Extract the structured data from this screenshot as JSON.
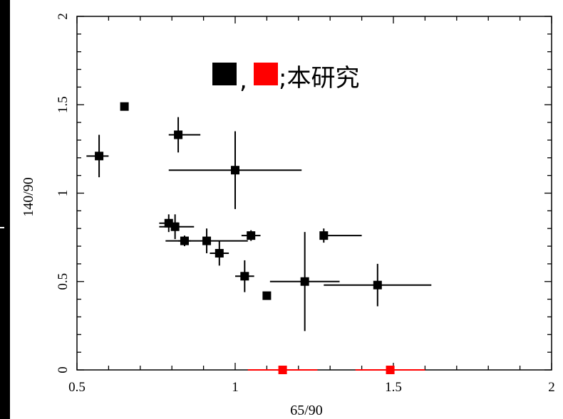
{
  "chart_data": {
    "type": "scatter",
    "title": "",
    "xlabel": "65/90",
    "ylabel": "140/90",
    "xlim": [
      0.5,
      2
    ],
    "ylim": [
      0,
      2
    ],
    "xticks": [
      "0.5",
      "1",
      "1.5",
      "2"
    ],
    "yticks": [
      "0",
      "0.5",
      "1",
      "1.5",
      "2"
    ],
    "grid": false,
    "legend": {
      "placement": "top-center",
      "text": ";本研究",
      "separator": ",",
      "colors": [
        "#000000",
        "#ff0000"
      ]
    },
    "series": [
      {
        "color": "#000000",
        "points": [
          {
            "x": 0.57,
            "y": 1.21,
            "xerr": [
              0.04,
              0.03
            ],
            "yerr": [
              0.12,
              0.12
            ]
          },
          {
            "x": 0.65,
            "y": 1.49,
            "xerr": [
              0.005,
              0.005
            ],
            "yerr": [
              0.015,
              0.015
            ]
          },
          {
            "x": 0.82,
            "y": 1.33,
            "xerr": [
              0.03,
              0.07
            ],
            "yerr": [
              0.1,
              0.1
            ]
          },
          {
            "x": 1.0,
            "y": 1.13,
            "xerr": [
              0.21,
              0.21
            ],
            "yerr": [
              0.22,
              0.22
            ]
          },
          {
            "x": 0.79,
            "y": 0.83,
            "xerr": [
              0.03,
              0.03
            ],
            "yerr": [
              0.05,
              0.05
            ]
          },
          {
            "x": 0.81,
            "y": 0.81,
            "xerr": [
              0.05,
              0.06
            ],
            "yerr": [
              0.07,
              0.07
            ]
          },
          {
            "x": 0.84,
            "y": 0.73,
            "xerr": [
              0.02,
              0.02
            ],
            "yerr": [
              0.03,
              0.03
            ]
          },
          {
            "x": 0.91,
            "y": 0.73,
            "xerr": [
              0.13,
              0.13
            ],
            "yerr": [
              0.07,
              0.07
            ]
          },
          {
            "x": 0.95,
            "y": 0.66,
            "xerr": [
              0.03,
              0.03
            ],
            "yerr": [
              0.07,
              0.07
            ]
          },
          {
            "x": 1.03,
            "y": 0.53,
            "xerr": [
              0.03,
              0.03
            ],
            "yerr": [
              0.09,
              0.09
            ]
          },
          {
            "x": 1.05,
            "y": 0.76,
            "xerr": [
              0.03,
              0.03
            ],
            "yerr": [
              0.03,
              0.03
            ]
          },
          {
            "x": 1.1,
            "y": 0.42,
            "xerr": [
              0.01,
              0.01
            ],
            "yerr": [
              0.02,
              0.02
            ]
          },
          {
            "x": 1.22,
            "y": 0.5,
            "xerr": [
              0.11,
              0.11
            ],
            "yerr": [
              0.28,
              0.28
            ]
          },
          {
            "x": 1.28,
            "y": 0.76,
            "xerr": [
              0.0,
              0.12
            ],
            "yerr": [
              0.04,
              0.04
            ]
          },
          {
            "x": 1.45,
            "y": 0.48,
            "xerr": [
              0.17,
              0.17
            ],
            "yerr": [
              0.12,
              0.12
            ]
          }
        ]
      },
      {
        "color": "#ff0000",
        "points": [
          {
            "x": 1.15,
            "y": 0.0,
            "xerr": [
              0.11,
              0.11
            ],
            "yerr": [
              0,
              0
            ]
          },
          {
            "x": 1.49,
            "y": 0.0,
            "xerr": [
              0.11,
              0.11
            ],
            "yerr": [
              0,
              0
            ]
          }
        ]
      }
    ]
  }
}
